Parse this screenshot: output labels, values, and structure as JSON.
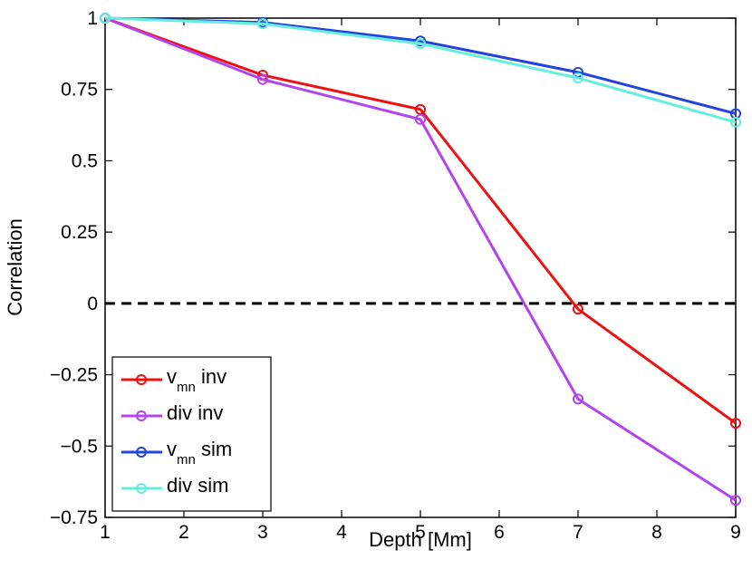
{
  "chart_data": {
    "type": "line",
    "title": "",
    "xlabel": "Depth  [Mm]",
    "ylabel": "Correlation",
    "xlim": [
      1,
      9
    ],
    "ylim": [
      -0.75,
      1
    ],
    "xticks": [
      1,
      2,
      3,
      4,
      5,
      6,
      7,
      8,
      9
    ],
    "xtick_labels": [
      "1",
      "2",
      "3",
      "4",
      "5",
      "6",
      "7",
      "8",
      "9"
    ],
    "yticks": [
      -0.75,
      -0.5,
      -0.25,
      0,
      0.25,
      0.5,
      0.75,
      1
    ],
    "ytick_labels": [
      "−0.75",
      "−0.5",
      "−0.25",
      "0",
      "0.25",
      "0.5",
      "0.75",
      "1"
    ],
    "grid": false,
    "legend_position": "bottom-left",
    "reference_line": {
      "y": 0,
      "style": "dashed",
      "color": "#000000"
    },
    "x": [
      1,
      3,
      5,
      7,
      9
    ],
    "series": [
      {
        "name": "v_mn inv",
        "label_main": "v",
        "label_sub": "mn",
        "label_tail": " inv",
        "color": "#ee1111",
        "values": [
          1.0,
          0.8,
          0.68,
          -0.02,
          -0.42
        ]
      },
      {
        "name": "div inv",
        "label_main": "div inv",
        "label_sub": "",
        "label_tail": "",
        "color": "#b144ee",
        "values": [
          1.0,
          0.785,
          0.645,
          -0.335,
          -0.69
        ]
      },
      {
        "name": "v_mn sim",
        "label_main": "v",
        "label_sub": "mn",
        "label_tail": " sim",
        "color": "#2244dd",
        "values": [
          1.0,
          0.985,
          0.92,
          0.81,
          0.665
        ]
      },
      {
        "name": "div sim",
        "label_main": "div sim",
        "label_sub": "",
        "label_tail": "",
        "color": "#66eedd",
        "values": [
          1.0,
          0.98,
          0.91,
          0.79,
          0.635
        ]
      }
    ]
  }
}
